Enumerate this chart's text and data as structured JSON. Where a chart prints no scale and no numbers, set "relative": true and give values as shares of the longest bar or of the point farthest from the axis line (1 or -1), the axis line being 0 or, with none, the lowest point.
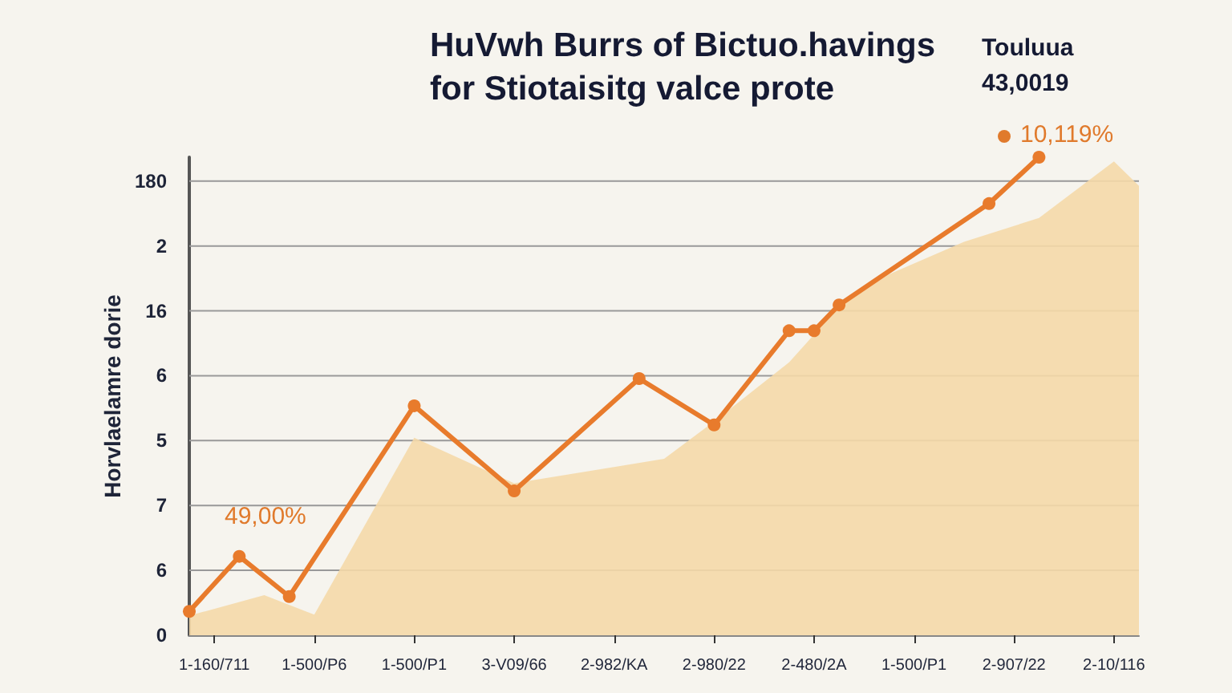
{
  "chart_data": {
    "type": "line",
    "title": "HuVwh Burrs of Bictuo.havings for Stiotaisitg valce prote",
    "ylabel": "Horvlaelamre dorie",
    "categories": [
      null,
      "1-160/711",
      null,
      null,
      null,
      "1-500/P6",
      null,
      null,
      null,
      "1-500/P1",
      null,
      null,
      null,
      "3-V09/66",
      null,
      null,
      null,
      "2-982/KA",
      null,
      null,
      null,
      "2-980/22",
      null,
      null,
      null,
      "2-480/2A",
      null,
      null,
      null,
      "1-500/P1",
      null,
      null,
      null,
      "2-907/22",
      null,
      null,
      null,
      "2-10/116",
      null
    ],
    "relative": true,
    "series": [
      {
        "type": "area",
        "color": "#f5d9a8",
        "values": [
          0.041,
          null,
          null,
          0.084,
          null,
          0.043,
          null,
          null,
          null,
          0.413,
          null,
          null,
          null,
          0.318,
          null,
          null,
          null,
          0.352,
          null,
          0.369,
          null,
          0.447,
          null,
          null,
          0.571,
          null,
          0.687,
          null,
          0.755,
          null,
          null,
          0.823,
          null,
          null,
          0.873,
          null,
          null,
          0.991,
          0.94
        ]
      },
      {
        "color": "#e87b2c",
        "marker": "circle",
        "values": [
          0.05,
          null,
          0.165,
          null,
          0.081,
          null,
          null,
          null,
          null,
          0.48,
          null,
          null,
          null,
          0.302,
          null,
          null,
          null,
          null,
          0.537,
          null,
          null,
          0.44,
          null,
          null,
          0.637,
          0.637,
          0.691,
          null,
          null,
          null,
          null,
          null,
          0.903,
          null,
          1,
          null,
          null,
          null,
          null
        ]
      }
    ],
    "annotations": [
      "49,00%",
      "10,119%",
      "Touluua",
      "43,0019",
      "0",
      "6",
      "7",
      "5",
      "6",
      "16",
      "2",
      "180"
    ],
    "grid": "y",
    "line_style": "solid"
  }
}
